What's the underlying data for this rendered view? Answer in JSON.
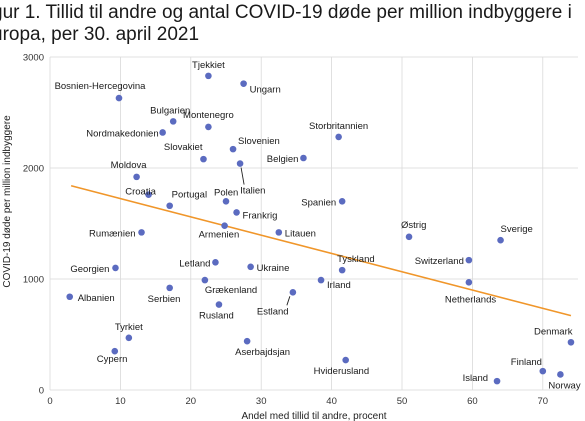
{
  "title": "gur 1. Tillid til andre og antal COVID-19 døde per million indbyggere i\nuropa, per 30. april 2021",
  "colors": {
    "points": "#5b6bc0",
    "trend": "#f0962a",
    "grid": "#d9d9d9"
  },
  "chart_data": {
    "type": "scatter",
    "xlabel": "Andel med tillid til andre, procent",
    "ylabel": "COVID-19 døde per million indbyggere",
    "xlim": [
      0,
      75
    ],
    "ylim": [
      0,
      3000
    ],
    "xticks": [
      0,
      10,
      20,
      30,
      40,
      50,
      60,
      70
    ],
    "yticks": [
      0,
      1000,
      2000,
      3000
    ],
    "grid": true,
    "trendline": {
      "x": [
        3,
        74
      ],
      "y": [
        1840,
        670
      ]
    },
    "points": [
      {
        "label": "Tjekkiet",
        "x": 22.5,
        "y": 2830
      },
      {
        "label": "Ungarn",
        "x": 27.5,
        "y": 2760
      },
      {
        "label": "Bosnien-Hercegovina",
        "x": 9.8,
        "y": 2630
      },
      {
        "label": "Bulgarien",
        "x": 17.5,
        "y": 2420
      },
      {
        "label": "Montenegro",
        "x": 22.5,
        "y": 2370
      },
      {
        "label": "Nordmakedonien",
        "x": 16.0,
        "y": 2320
      },
      {
        "label": "Storbritannien",
        "x": 41.0,
        "y": 2280
      },
      {
        "label": "Slovenien",
        "x": 26.0,
        "y": 2170
      },
      {
        "label": "Slovakiet",
        "x": 21.8,
        "y": 2080
      },
      {
        "label": "Belgien",
        "x": 36.0,
        "y": 2090
      },
      {
        "label": "Italien",
        "x": 27.0,
        "y": 2040
      },
      {
        "label": "Moldova",
        "x": 12.3,
        "y": 1920
      },
      {
        "label": "Croatia",
        "x": 14.0,
        "y": 1760
      },
      {
        "label": "Portugal",
        "x": 17.0,
        "y": 1660
      },
      {
        "label": "Polen",
        "x": 25.0,
        "y": 1700
      },
      {
        "label": "Spanien",
        "x": 41.5,
        "y": 1700
      },
      {
        "label": "Frankrig",
        "x": 26.5,
        "y": 1600
      },
      {
        "label": "Armenien",
        "x": 24.8,
        "y": 1480
      },
      {
        "label": "Rumænien",
        "x": 13.0,
        "y": 1420
      },
      {
        "label": "Litauen",
        "x": 32.5,
        "y": 1420
      },
      {
        "label": "Østrig",
        "x": 51.0,
        "y": 1380
      },
      {
        "label": "Sverige",
        "x": 64.0,
        "y": 1350
      },
      {
        "label": "Letland",
        "x": 23.5,
        "y": 1150
      },
      {
        "label": "Switzerland",
        "x": 59.5,
        "y": 1170
      },
      {
        "label": "Georgien",
        "x": 9.3,
        "y": 1100
      },
      {
        "label": "Ukraine",
        "x": 28.5,
        "y": 1110
      },
      {
        "label": "Tyskland",
        "x": 41.5,
        "y": 1080
      },
      {
        "label": "Irland",
        "x": 38.5,
        "y": 990
      },
      {
        "label": "Grækenland",
        "x": 22.0,
        "y": 990
      },
      {
        "label": "Netherlands",
        "x": 59.5,
        "y": 970
      },
      {
        "label": "Serbien",
        "x": 17.0,
        "y": 920
      },
      {
        "label": "Estland",
        "x": 34.5,
        "y": 880
      },
      {
        "label": "Albanien",
        "x": 2.8,
        "y": 840
      },
      {
        "label": "Rusland",
        "x": 24.0,
        "y": 770
      },
      {
        "label": "Tyrkiet",
        "x": 11.2,
        "y": 470
      },
      {
        "label": "Aserbajdsjan",
        "x": 28.0,
        "y": 440
      },
      {
        "label": "Denmark",
        "x": 74.0,
        "y": 430
      },
      {
        "label": "Cypern",
        "x": 9.2,
        "y": 350
      },
      {
        "label": "Hviderusland",
        "x": 42.0,
        "y": 270
      },
      {
        "label": "Finland",
        "x": 70.0,
        "y": 170
      },
      {
        "label": "Norway",
        "x": 72.5,
        "y": 140
      },
      {
        "label": "Island",
        "x": 63.5,
        "y": 80
      }
    ]
  }
}
